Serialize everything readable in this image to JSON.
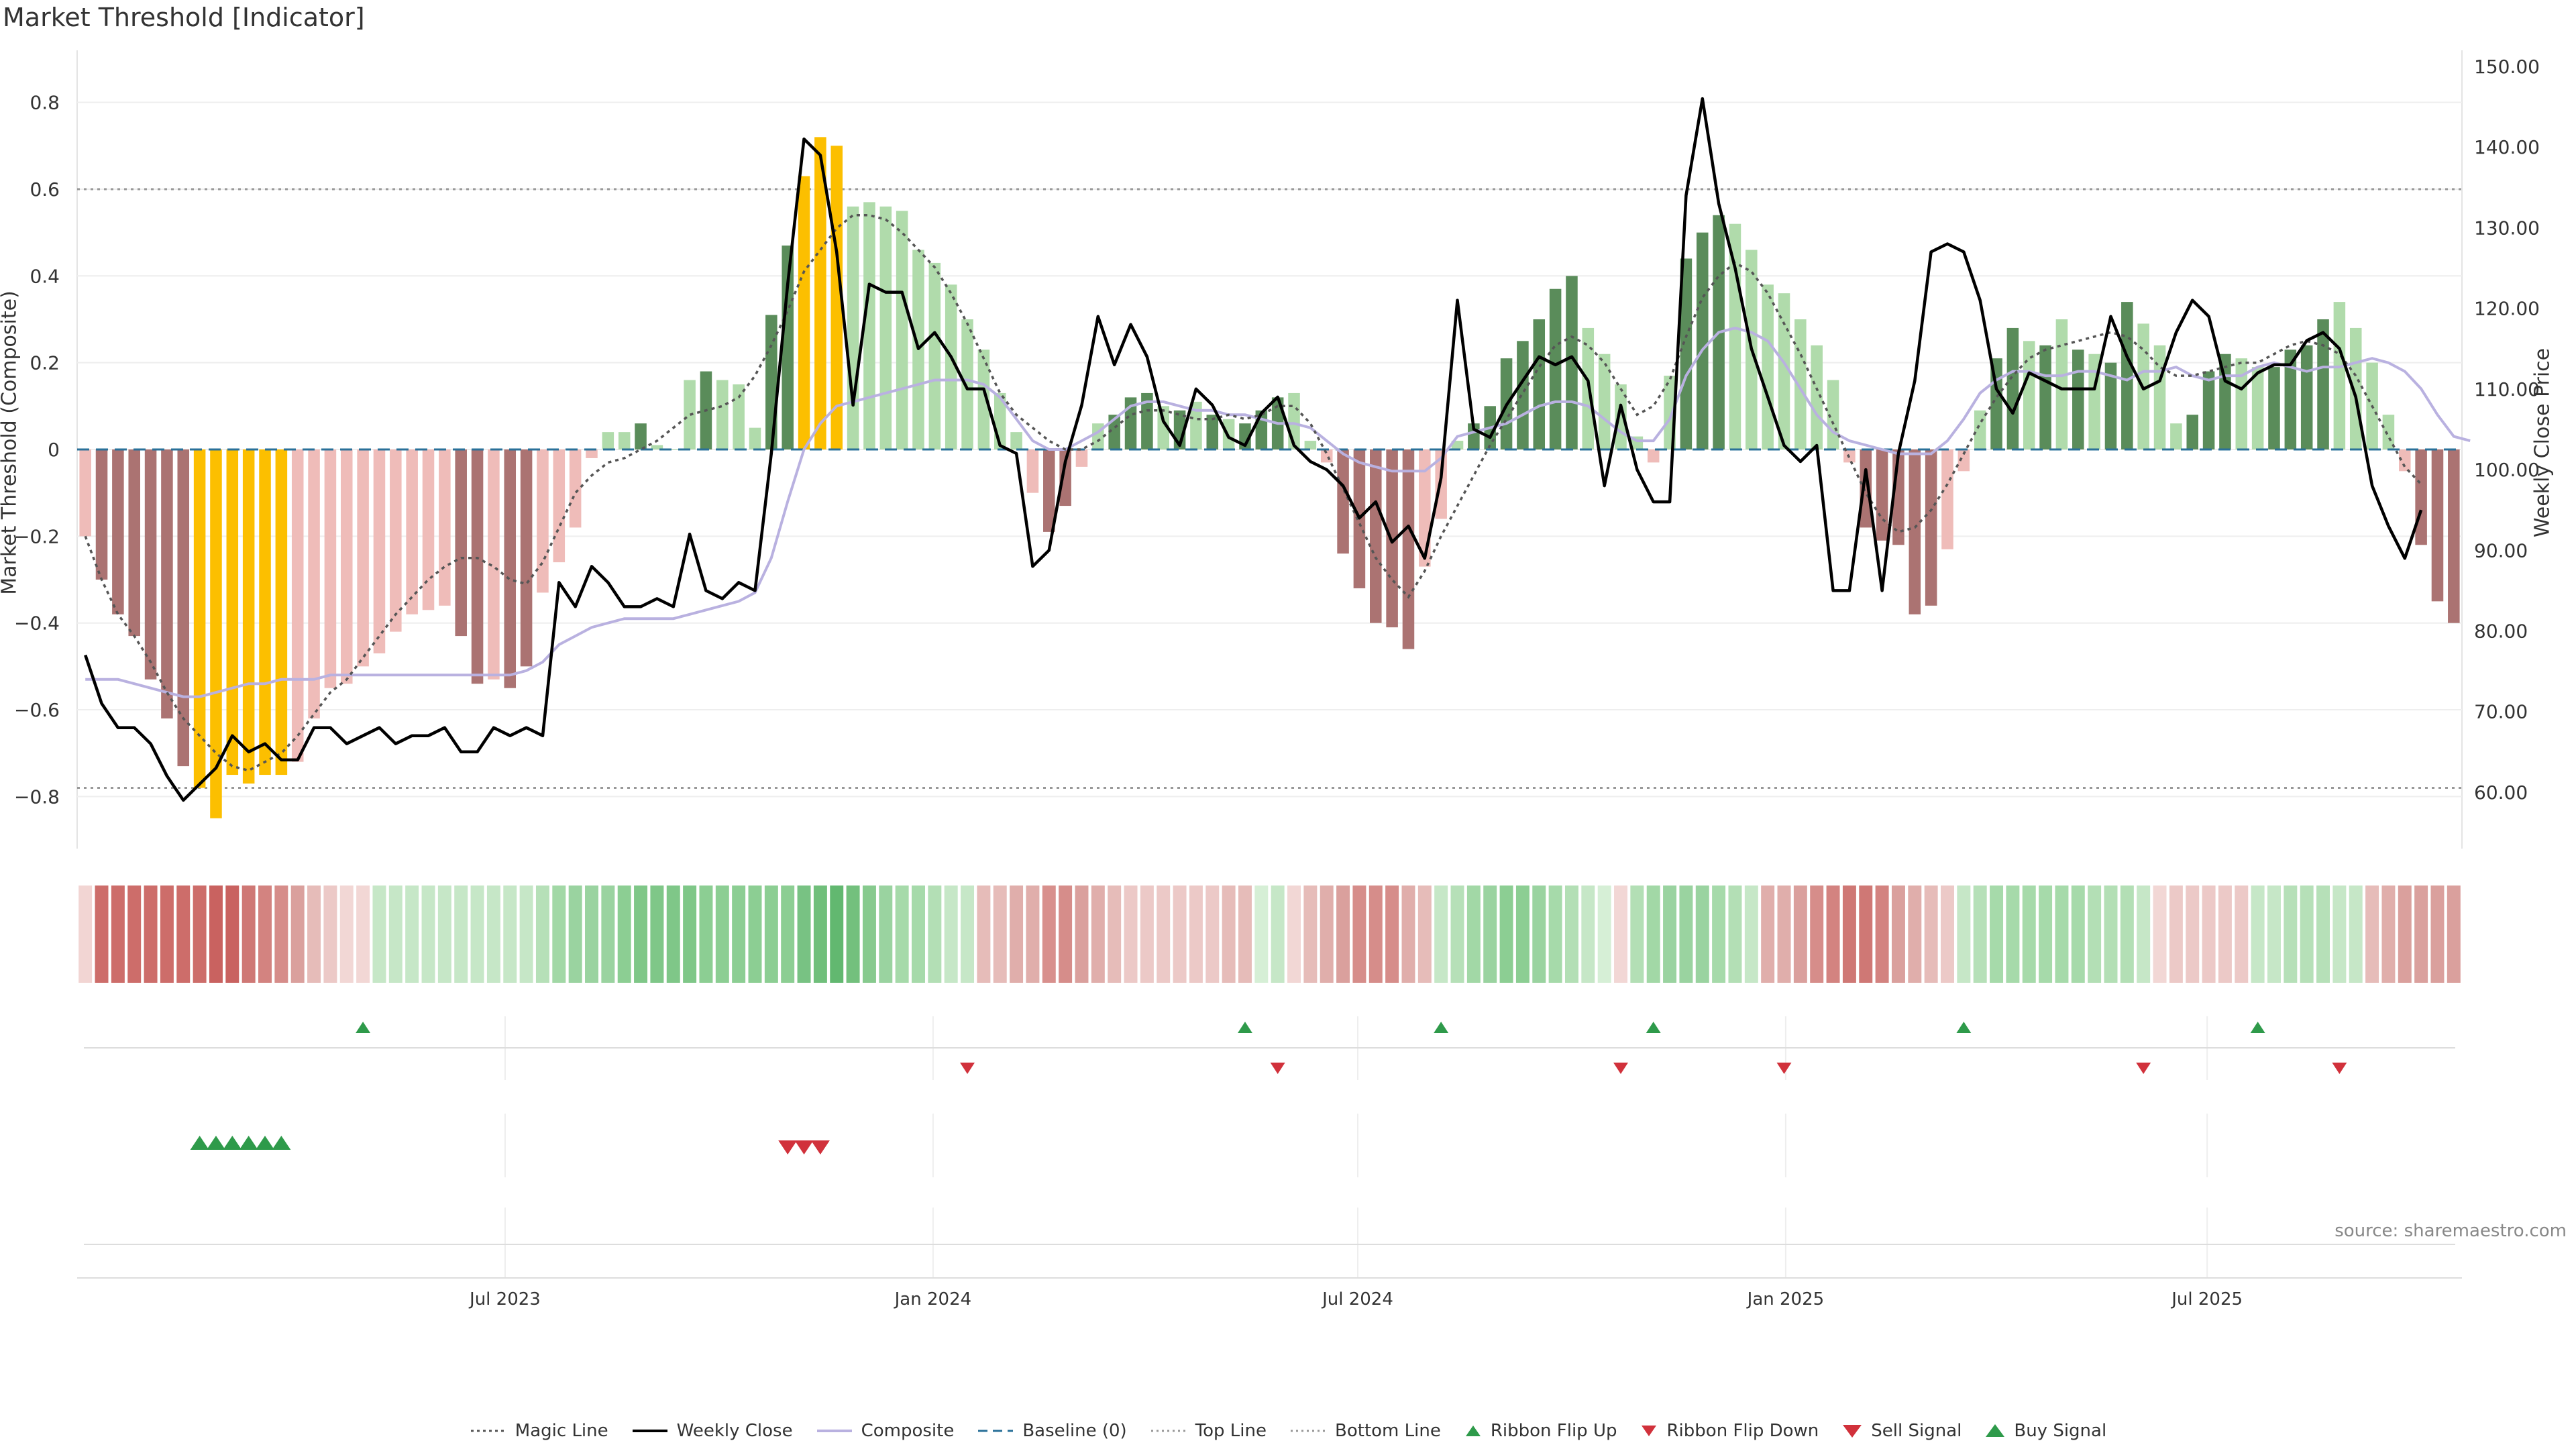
{
  "title": "Market Threshold [Indicator]",
  "source": "source: sharemaestro.com",
  "colors": {
    "strong_neg": "#ab7372",
    "weak_neg": "#efbcb9",
    "strong_pos": "#5a8c5a",
    "weak_pos": "#b0dbab",
    "extreme": "#fcbf00",
    "price": "#000000",
    "composite": "#b9b1e0",
    "magic": "#555555",
    "baseline": "#2a7099",
    "threshold": "#999999",
    "buy": "#2e9a4a",
    "sell": "#d1313b"
  },
  "chart_data": {
    "type": "bar",
    "ylabel_left": "Market Threshold (Composite)",
    "ylabel_right": "Weekly Close Price",
    "ylim_left": [
      -0.92,
      0.92
    ],
    "ylim_right": [
      53,
      152
    ],
    "yticks_left": [
      "0.8",
      "0.6",
      "0.4",
      "0.2",
      "0",
      "−0.2",
      "−0.4",
      "−0.6",
      "−0.8"
    ],
    "yticks_right": [
      "150.00",
      "140.00",
      "130.00",
      "120.00",
      "110.00",
      "100.00",
      "90.00",
      "80.00",
      "70.00",
      "60.00"
    ],
    "x_ticks": [
      "Jul 2023",
      "Jan 2024",
      "Jul 2024",
      "Jan 2025",
      "Jul 2025"
    ],
    "x_tick_index": [
      25.7,
      51.9,
      77.9,
      104.1,
      129.9
    ],
    "top_line": 0.6,
    "bottom_line": -0.78,
    "bars": [
      -0.2,
      -0.3,
      -0.38,
      -0.43,
      -0.53,
      -0.62,
      -0.73,
      -0.78,
      -0.85,
      -0.75,
      -0.77,
      -0.75,
      -0.75,
      -0.72,
      -0.62,
      -0.55,
      -0.54,
      -0.5,
      -0.47,
      -0.42,
      -0.38,
      -0.37,
      -0.36,
      -0.43,
      -0.54,
      -0.53,
      -0.55,
      -0.5,
      -0.33,
      -0.26,
      -0.18,
      -0.02,
      0.04,
      0.04,
      0.06,
      0.01,
      0.0,
      0.16,
      0.18,
      0.16,
      0.15,
      0.05,
      0.31,
      0.47,
      0.63,
      0.72,
      0.7,
      0.56,
      0.57,
      0.56,
      0.55,
      0.46,
      0.43,
      0.38,
      0.3,
      0.23,
      0.13,
      0.04,
      -0.1,
      -0.19,
      -0.13,
      -0.04,
      0.06,
      0.08,
      0.12,
      0.13,
      0.1,
      0.09,
      0.11,
      0.08,
      0.07,
      0.06,
      0.09,
      0.12,
      0.13,
      0.02,
      -0.03,
      -0.24,
      -0.32,
      -0.4,
      -0.41,
      -0.46,
      -0.27,
      -0.16,
      0.02,
      0.06,
      0.1,
      0.21,
      0.25,
      0.3,
      0.37,
      0.4,
      0.28,
      0.22,
      0.15,
      0.03,
      -0.03,
      0.17,
      0.44,
      0.5,
      0.54,
      0.52,
      0.46,
      0.38,
      0.36,
      0.3,
      0.24,
      0.16,
      -0.03,
      -0.18,
      -0.21,
      -0.22,
      -0.38,
      -0.36,
      -0.23,
      -0.05,
      0.09,
      0.21,
      0.28,
      0.25,
      0.24,
      0.3,
      0.23,
      0.22,
      0.2,
      0.34,
      0.29,
      0.24,
      0.06,
      0.08,
      0.18,
      0.22,
      0.21,
      0.19,
      0.19,
      0.23,
      0.24,
      0.3,
      0.34,
      0.28,
      0.2,
      0.08,
      -0.05,
      -0.22,
      -0.35,
      -0.4
    ],
    "extreme_bars": [
      7,
      8,
      9,
      10,
      11,
      12,
      44,
      45,
      46
    ],
    "bar_tones": [
      0,
      1,
      1,
      1,
      1,
      1,
      1,
      2,
      2,
      2,
      2,
      2,
      2,
      0,
      0,
      0,
      0,
      0,
      0,
      0,
      0,
      0,
      0,
      1,
      1,
      0,
      1,
      1,
      0,
      0,
      0,
      0,
      0,
      0,
      1,
      0,
      0,
      0,
      1,
      0,
      0,
      0,
      1,
      1,
      2,
      2,
      2,
      0,
      0,
      0,
      0,
      0,
      0,
      0,
      0,
      0,
      0,
      0,
      0,
      1,
      1,
      0,
      0,
      1,
      1,
      1,
      0,
      1,
      0,
      1,
      0,
      1,
      1,
      1,
      0,
      0,
      0,
      1,
      1,
      1,
      1,
      1,
      0,
      0,
      0,
      1,
      1,
      1,
      1,
      1,
      1,
      1,
      0,
      0,
      0,
      0,
      0,
      0,
      1,
      1,
      1,
      0,
      0,
      0,
      0,
      0,
      0,
      0,
      0,
      1,
      1,
      1,
      1,
      1,
      0,
      0,
      0,
      1,
      1,
      0,
      1,
      0,
      1,
      0,
      1,
      1,
      0,
      0,
      0,
      1,
      1,
      1,
      0,
      0,
      1,
      1,
      1,
      1,
      0,
      0,
      0,
      0,
      0,
      1,
      1,
      1
    ],
    "price": [
      77,
      71,
      68,
      68,
      66,
      62,
      59,
      61,
      63,
      67,
      65,
      66,
      64,
      64,
      68,
      68,
      66,
      67,
      68,
      66,
      67,
      67,
      68,
      65,
      65,
      68,
      67,
      68,
      67,
      86,
      83,
      88,
      86,
      83,
      83,
      84,
      83,
      92,
      85,
      84,
      86,
      85,
      102,
      123,
      141,
      139,
      127,
      108,
      123,
      122,
      122,
      115,
      117,
      114,
      110,
      110,
      103,
      102,
      88,
      90,
      101,
      108,
      119,
      113,
      118,
      114,
      106,
      103,
      110,
      108,
      104,
      103,
      107,
      109,
      103,
      101,
      100,
      98,
      94,
      96,
      91,
      93,
      89,
      99,
      121,
      105,
      104,
      108,
      111,
      114,
      113,
      114,
      111,
      98,
      108,
      100,
      96,
      96,
      134,
      146,
      133,
      125,
      115,
      109,
      103,
      101,
      103,
      85,
      85,
      100,
      85,
      102,
      111,
      127,
      128,
      127,
      121,
      110,
      107,
      112,
      111,
      110,
      110,
      110,
      119,
      114,
      110,
      111,
      117,
      121,
      119,
      111,
      110,
      112,
      113,
      113,
      116,
      117,
      115,
      109,
      98,
      93,
      89,
      95
    ],
    "composite": [
      -0.53,
      -0.53,
      -0.53,
      -0.54,
      -0.55,
      -0.56,
      -0.57,
      -0.57,
      -0.56,
      -0.55,
      -0.54,
      -0.54,
      -0.53,
      -0.53,
      -0.53,
      -0.52,
      -0.52,
      -0.52,
      -0.52,
      -0.52,
      -0.52,
      -0.52,
      -0.52,
      -0.52,
      -0.52,
      -0.52,
      -0.52,
      -0.51,
      -0.49,
      -0.45,
      -0.43,
      -0.41,
      -0.4,
      -0.39,
      -0.39,
      -0.39,
      -0.39,
      -0.38,
      -0.37,
      -0.36,
      -0.35,
      -0.33,
      -0.25,
      -0.12,
      0.0,
      0.06,
      0.1,
      0.11,
      0.12,
      0.13,
      0.14,
      0.15,
      0.16,
      0.16,
      0.16,
      0.15,
      0.12,
      0.07,
      0.02,
      0.0,
      0.0,
      0.02,
      0.04,
      0.07,
      0.1,
      0.11,
      0.11,
      0.1,
      0.09,
      0.09,
      0.08,
      0.08,
      0.07,
      0.06,
      0.06,
      0.05,
      0.02,
      -0.01,
      -0.03,
      -0.04,
      -0.05,
      -0.05,
      -0.05,
      -0.02,
      0.03,
      0.04,
      0.05,
      0.06,
      0.08,
      0.1,
      0.11,
      0.11,
      0.1,
      0.07,
      0.04,
      0.02,
      0.02,
      0.07,
      0.17,
      0.23,
      0.27,
      0.28,
      0.27,
      0.25,
      0.2,
      0.14,
      0.08,
      0.04,
      0.02,
      0.01,
      0.0,
      -0.01,
      -0.01,
      -0.01,
      0.02,
      0.07,
      0.13,
      0.16,
      0.18,
      0.18,
      0.17,
      0.17,
      0.18,
      0.18,
      0.17,
      0.16,
      0.18,
      0.18,
      0.19,
      0.17,
      0.16,
      0.17,
      0.17,
      0.19,
      0.2,
      0.19,
      0.18,
      0.19,
      0.19,
      0.2,
      0.21,
      0.2,
      0.18,
      0.14,
      0.08,
      0.03,
      0.02
    ],
    "magic": [
      -0.2,
      -0.3,
      -0.38,
      -0.43,
      -0.49,
      -0.56,
      -0.62,
      -0.66,
      -0.7,
      -0.73,
      -0.74,
      -0.72,
      -0.7,
      -0.66,
      -0.61,
      -0.56,
      -0.53,
      -0.48,
      -0.43,
      -0.38,
      -0.34,
      -0.3,
      -0.27,
      -0.25,
      -0.25,
      -0.27,
      -0.3,
      -0.31,
      -0.26,
      -0.18,
      -0.1,
      -0.06,
      -0.03,
      -0.02,
      0.0,
      0.02,
      0.05,
      0.08,
      0.09,
      0.1,
      0.12,
      0.17,
      0.24,
      0.32,
      0.41,
      0.46,
      0.51,
      0.54,
      0.54,
      0.53,
      0.5,
      0.46,
      0.42,
      0.36,
      0.29,
      0.21,
      0.13,
      0.08,
      0.05,
      0.02,
      0.0,
      0.0,
      0.02,
      0.05,
      0.08,
      0.09,
      0.09,
      0.08,
      0.07,
      0.07,
      0.08,
      0.07,
      0.08,
      0.1,
      0.1,
      0.06,
      -0.01,
      -0.09,
      -0.17,
      -0.25,
      -0.3,
      -0.34,
      -0.28,
      -0.2,
      -0.13,
      -0.06,
      0.01,
      0.07,
      0.13,
      0.19,
      0.24,
      0.26,
      0.24,
      0.2,
      0.14,
      0.08,
      0.1,
      0.16,
      0.26,
      0.35,
      0.4,
      0.43,
      0.41,
      0.36,
      0.29,
      0.22,
      0.14,
      0.06,
      -0.02,
      -0.1,
      -0.16,
      -0.19,
      -0.18,
      -0.14,
      -0.08,
      -0.01,
      0.06,
      0.12,
      0.17,
      0.21,
      0.23,
      0.24,
      0.25,
      0.26,
      0.27,
      0.26,
      0.23,
      0.19,
      0.17,
      0.17,
      0.18,
      0.19,
      0.2,
      0.2,
      0.22,
      0.24,
      0.25,
      0.24,
      0.22,
      0.17,
      0.1,
      0.03,
      -0.04,
      -0.08
    ],
    "ribbon_colors": [
      "#f2d5d3",
      "#cd6d6a",
      "#cd6d6a",
      "#cd6d6a",
      "#cd6d6a",
      "#cd6d6a",
      "#cd6d6a",
      "#cd6d6a",
      "#c96260",
      "#c96260",
      "#cf7875",
      "#d38380",
      "#d68d8a",
      "#daa09d",
      "#e6bcb9",
      "#ecc9c7",
      "#f2d7d5",
      "#f2d7d5",
      "#c6e7c7",
      "#c6e7c7",
      "#c6e7c7",
      "#c6e7c7",
      "#c6e7c7",
      "#c6e7c7",
      "#c6e7c7",
      "#c6e7c7",
      "#c6e7c7",
      "#c6e7c7",
      "#b6e0b8",
      "#a2d8a6",
      "#9ad3a0",
      "#9ad3a0",
      "#9ad3a0",
      "#8cce93",
      "#7fc788",
      "#7fc788",
      "#7fc788",
      "#7fc788",
      "#8cce93",
      "#8cce93",
      "#8cce93",
      "#8cce93",
      "#8cce93",
      "#8cce93",
      "#78c283",
      "#70bf7b",
      "#62b870",
      "#73c07d",
      "#87ca8e",
      "#9ad3a0",
      "#a6daaa",
      "#a6daaa",
      "#b3dfb5",
      "#c6e7c7",
      "#c6e7c7",
      "#e6bcb9",
      "#e6bcb9",
      "#e0aeab",
      "#e0aeab",
      "#d8908d",
      "#d68d8a",
      "#daa09d",
      "#e0aeab",
      "#e6bcb9",
      "#ecc9c7",
      "#ecc9c7",
      "#ecc9c7",
      "#ecc9c7",
      "#ecc9c7",
      "#ecc9c7",
      "#e6bcb9",
      "#e6bcb9",
      "#d6efd6",
      "#c6e7c7",
      "#f2d7d5",
      "#e6bcb9",
      "#e0aeab",
      "#daa09d",
      "#d68d8a",
      "#d68d8a",
      "#d68d8a",
      "#e0aeab",
      "#e6bcb9",
      "#c6e7c7",
      "#b6e0b8",
      "#a2d8a6",
      "#9ad3a0",
      "#8cce93",
      "#8cce93",
      "#9ad3a0",
      "#a6daaa",
      "#b3dfb5",
      "#c6e7c7",
      "#d6efd6",
      "#f2d7d5",
      "#b3dfb5",
      "#a2d8a6",
      "#9ad3a0",
      "#9ad3a0",
      "#9ad3a0",
      "#a6daaa",
      "#b3dfb5",
      "#c6e7c7",
      "#e0aeab",
      "#e0aeab",
      "#daa09d",
      "#d68d8a",
      "#d38380",
      "#cf7875",
      "#cf7875",
      "#d38380",
      "#daa09d",
      "#e0aeab",
      "#e6bcb9",
      "#ecc9c7",
      "#c6e7c7",
      "#b6e0b8",
      "#a6daaa",
      "#a6daaa",
      "#a6daaa",
      "#a6daaa",
      "#a6daaa",
      "#a6daaa",
      "#b3dfb5",
      "#b3dfb5",
      "#b3dfb5",
      "#c6e7c7",
      "#f2d7d5",
      "#ecc9c7",
      "#ecc9c7",
      "#ecc9c7",
      "#ecc9c7",
      "#ecc9c7",
      "#c6e7c7",
      "#c6e7c7",
      "#b6e0b8",
      "#b6e0b8",
      "#b6e0b8",
      "#c6e7c7",
      "#c6e7c7",
      "#e6bcb9",
      "#e0aeab",
      "#daa09d",
      "#daa09d",
      "#daa09d",
      "#daa09d"
    ],
    "ribbon_flip_up": [
      17,
      71,
      83,
      96,
      115,
      133
    ],
    "ribbon_flip_down": [
      54,
      73,
      94,
      104,
      126,
      138
    ],
    "buy_signals": [
      7,
      8,
      9,
      10,
      11,
      12
    ],
    "sell_signals": [
      43,
      44,
      45
    ],
    "legend": [
      "Magic Line",
      "Weekly Close",
      "Composite",
      "Baseline (0)",
      "Top Line",
      "Bottom Line",
      "Ribbon Flip Up",
      "Ribbon Flip Down",
      "Sell Signal",
      "Buy Signal"
    ]
  }
}
